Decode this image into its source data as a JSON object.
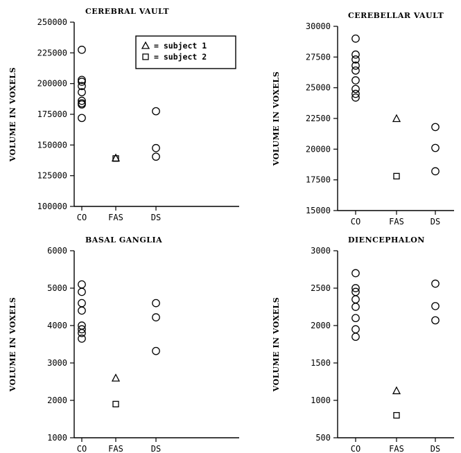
{
  "chart_data": [
    {
      "type": "scatter",
      "title": "CEREBRAL VAULT",
      "ylabel": "VOLUME IN VOXELS",
      "categories": [
        "CO",
        "FAS",
        "DS"
      ],
      "ylim": [
        100000,
        250000
      ],
      "yticks": [
        100000,
        125000,
        150000,
        175000,
        200000,
        225000,
        250000
      ],
      "series": [
        {
          "category": "CO",
          "marker": "circle",
          "values": [
            227500,
            203000,
            201500,
            198000,
            193000,
            186000,
            184000,
            183000,
            172000
          ]
        },
        {
          "category": "FAS",
          "marker": "triangle",
          "name": "subject 1",
          "values": [
            139500
          ]
        },
        {
          "category": "FAS",
          "marker": "square",
          "name": "subject 2",
          "values": [
            139000
          ]
        },
        {
          "category": "DS",
          "marker": "circle",
          "values": [
            177500,
            147500,
            140500
          ]
        }
      ],
      "legend": {
        "position": "top-right",
        "entries": [
          {
            "marker": "triangle",
            "label": "= subject 1"
          },
          {
            "marker": "square",
            "label": "= subject 2"
          }
        ]
      }
    },
    {
      "type": "scatter",
      "title": "CEREBELLAR VAULT",
      "ylabel": "VOLUME IN VOXELS",
      "categories": [
        "CO",
        "FAS",
        "DS"
      ],
      "ylim": [
        15000,
        30000
      ],
      "yticks": [
        15000,
        17500,
        20000,
        22500,
        25000,
        27500,
        30000
      ],
      "series": [
        {
          "category": "CO",
          "marker": "circle",
          "values": [
            29000,
            27700,
            27300,
            26800,
            26400,
            25600,
            24900,
            24500,
            24200
          ]
        },
        {
          "category": "FAS",
          "marker": "triangle",
          "values": [
            22500
          ]
        },
        {
          "category": "FAS",
          "marker": "square",
          "values": [
            17800
          ]
        },
        {
          "category": "DS",
          "marker": "circle",
          "values": [
            21800,
            20100,
            18200
          ]
        }
      ]
    },
    {
      "type": "scatter",
      "title": "BASAL GANGLIA",
      "ylabel": "VOLUME IN VOXELS",
      "categories": [
        "CO",
        "FAS",
        "DS"
      ],
      "ylim": [
        1000,
        6000
      ],
      "yticks": [
        1000,
        2000,
        3000,
        4000,
        5000,
        6000
      ],
      "series": [
        {
          "category": "CO",
          "marker": "circle",
          "values": [
            5100,
            4900,
            4600,
            4400,
            4000,
            3900,
            3800,
            3650
          ]
        },
        {
          "category": "FAS",
          "marker": "triangle",
          "values": [
            2600
          ]
        },
        {
          "category": "FAS",
          "marker": "square",
          "values": [
            1900
          ]
        },
        {
          "category": "DS",
          "marker": "circle",
          "values": [
            4600,
            4220,
            3320
          ]
        }
      ]
    },
    {
      "type": "scatter",
      "title": "DIENCEPHALON",
      "ylabel": "VOLUME IN VOXELS",
      "categories": [
        "CO",
        "FAS",
        "DS"
      ],
      "ylim": [
        500,
        3000
      ],
      "yticks": [
        500,
        1000,
        1500,
        2000,
        2500,
        3000
      ],
      "series": [
        {
          "category": "CO",
          "marker": "circle",
          "values": [
            2700,
            2500,
            2450,
            2350,
            2250,
            2100,
            1950,
            1850
          ]
        },
        {
          "category": "FAS",
          "marker": "triangle",
          "values": [
            1130
          ]
        },
        {
          "category": "FAS",
          "marker": "square",
          "values": [
            800
          ]
        },
        {
          "category": "DS",
          "marker": "circle",
          "values": [
            2560,
            2260,
            2070
          ]
        }
      ]
    }
  ]
}
